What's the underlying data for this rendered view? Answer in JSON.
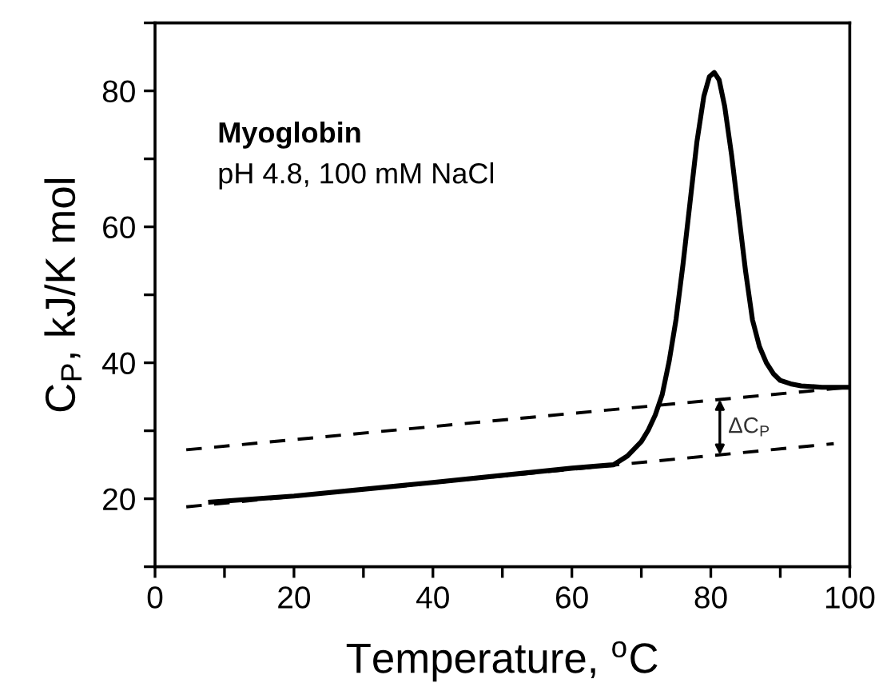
{
  "chart_data": {
    "type": "line",
    "xlabel": "Temperature, $^{o}$C",
    "ylabel": "C$_{P}$, kJ/K mol",
    "annotations": [
      "Myoglobin",
      "pH 4.8, 100 mM NaCl",
      "ΔC$_{P}$"
    ],
    "series": [
      {
        "color": "#000000",
        "line_style": "solid",
        "x": [
          8,
          20,
          40,
          60,
          66,
          68,
          70,
          71,
          72,
          73,
          74,
          75,
          76,
          77,
          78,
          79,
          79.8,
          80.5,
          81.2,
          82,
          83,
          84,
          85,
          86,
          87,
          88,
          89,
          90,
          91.5,
          93,
          96,
          100
        ],
        "values": [
          19.5,
          20.4,
          22.4,
          24.5,
          25.0,
          26.3,
          28.4,
          30.1,
          32.3,
          35.3,
          40.2,
          46.4,
          54.5,
          63.5,
          72.5,
          79.2,
          82.1,
          82.7,
          81.6,
          77.7,
          70.5,
          62,
          53.5,
          46.3,
          42.4,
          40,
          38.4,
          37.4,
          36.9,
          36.6,
          36.4,
          36.4
        ]
      },
      {
        "color": "#000000",
        "line_style": "dashed",
        "x": [
          4.5,
          100
        ],
        "values": [
          27.2,
          36.4
        ]
      },
      {
        "color": "#000000",
        "line_style": "dashed",
        "x": [
          4.5,
          97.7
        ],
        "values": [
          18.8,
          28.1
        ]
      }
    ],
    "xlim": [
      0,
      100
    ],
    "ylim": [
      10,
      90
    ],
    "xticks": [
      0,
      {
        "value": 10,
        "label": null
      },
      20,
      {
        "value": 30,
        "label": null
      },
      40,
      {
        "value": 50,
        "label": null
      },
      60,
      {
        "value": 70,
        "label": null
      },
      80,
      {
        "value": 90,
        "label": null
      },
      100
    ],
    "yticks": [
      {
        "value": 10,
        "label": null
      },
      20,
      {
        "value": 30,
        "label": null
      },
      40,
      {
        "value": 50,
        "label": null
      },
      60,
      {
        "value": 70,
        "label": null
      },
      80,
      {
        "value": 90,
        "label": null
      }
    ],
    "grid": false,
    "legend": false,
    "marker": "none"
  }
}
